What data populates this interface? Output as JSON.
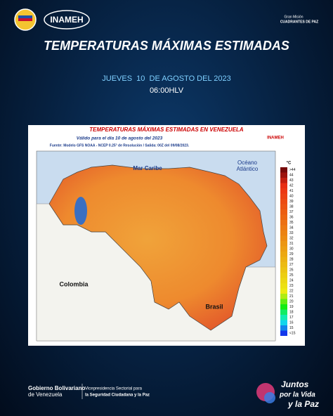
{
  "header": {
    "logo_left": "INAMEH",
    "logo_right_1": "Gran Misión",
    "logo_right_2": "CUADRANTES DE PAZ",
    "title": "TEMPERATURAS MÁXIMAS ESTIMADAS",
    "date": "JUEVES  10  DE AGOSTO DEL 2023",
    "time": "06:00HLV"
  },
  "map": {
    "title": "TEMPERATURAS MÁXIMAS ESTIMADAS EN VENEZUELA",
    "valid": "Válido para el día 10 de agosto del 2023",
    "source": "Fuente: Modelo GFS NOAA - NCEP 0.25° de Resolución / Salida: 00Z del 09/08/2023.",
    "logo": "INAMEH",
    "sea": "Mar Caribe",
    "ocean_1": "Océano",
    "ocean_2": "Atlántico",
    "country_west": "Colombia",
    "country_south": "Brasil",
    "unit": "°C",
    "legend": [
      ">44",
      44,
      43,
      42,
      41,
      40,
      39,
      38,
      37,
      36,
      35,
      34,
      33,
      32,
      31,
      30,
      29,
      28,
      27,
      26,
      25,
      24,
      23,
      22,
      21,
      20,
      19,
      18,
      17,
      16,
      15,
      "<15"
    ]
  },
  "footer": {
    "gov_1": "Gobierno Bolivariano",
    "gov_2": "de Venezuela",
    "vice_1": "Vicepresidencia Sectorial para",
    "vice_2": "la Seguridad Ciudadana y la Paz",
    "slogan_1": "Juntos",
    "slogan_2": "por la Vida",
    "slogan_3": "y la Paz"
  }
}
